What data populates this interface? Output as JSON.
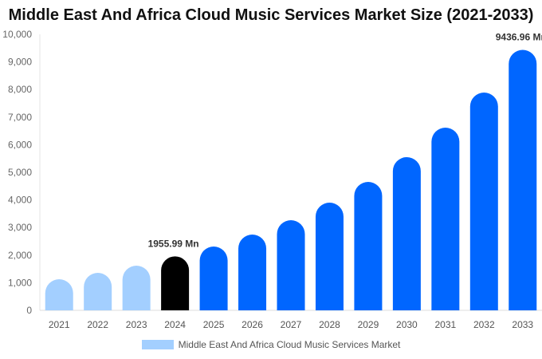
{
  "chart_data": {
    "type": "bar",
    "title": "Middle East And Africa Cloud Music Services Market Size (2021-2033)",
    "categories": [
      "2021",
      "2022",
      "2023",
      "2024",
      "2025",
      "2026",
      "2027",
      "2028",
      "2029",
      "2030",
      "2031",
      "2032",
      "2033"
    ],
    "series": [
      {
        "name": "Middle East And Africa Cloud Music Services Market",
        "values": [
          1127,
          1358,
          1618,
          1955.99,
          2312,
          2746,
          3266,
          3902,
          4653,
          5549,
          6618,
          7890,
          9436.96
        ]
      }
    ],
    "bar_colors": [
      "#a3cfff",
      "#a3cfff",
      "#a3cfff",
      "#000000",
      "#0066ff",
      "#0066ff",
      "#0066ff",
      "#0066ff",
      "#0066ff",
      "#0066ff",
      "#0066ff",
      "#0066ff",
      "#0066ff"
    ],
    "legend_color": "#a3cfff",
    "ylim": [
      0,
      10000
    ],
    "yticks": [
      "0",
      "1,000",
      "2,000",
      "3,000",
      "4,000",
      "5,000",
      "6,000",
      "7,000",
      "8,000",
      "9,000",
      "10,000"
    ],
    "annotations": [
      {
        "index": 3,
        "text": "1955.99 Mn"
      },
      {
        "index": 12,
        "text": "9436.96 Mn"
      }
    ],
    "xlabel": "",
    "ylabel": "",
    "grid": false,
    "legend_position": "bottom"
  }
}
